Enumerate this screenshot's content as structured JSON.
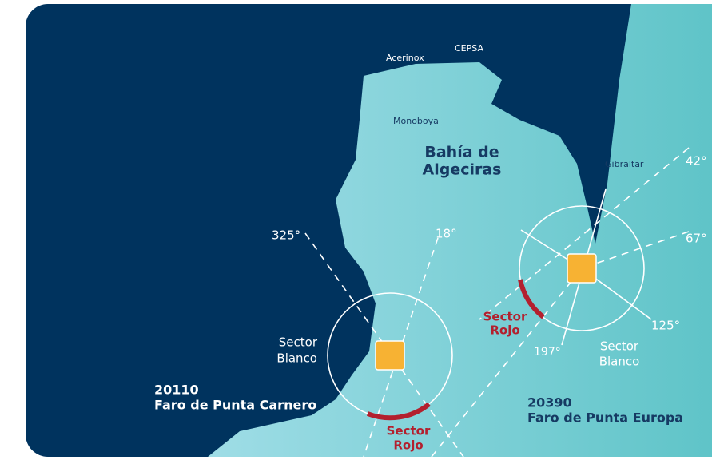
{
  "labels": {
    "acerinox": "Acerinox",
    "cepsa": "CEPSA",
    "monoboya": "Monoboya",
    "gibraltar": "Gibraltar"
  },
  "bay": [
    "Bahía de",
    "Algeciras"
  ],
  "carnero": {
    "number": "20110",
    "name": "Faro de Punta Carnero",
    "bearings": [
      "325°",
      "18°"
    ],
    "sector_white": [
      "Sector",
      "Blanco"
    ],
    "sector_red": [
      "Sector",
      "Rojo"
    ]
  },
  "europa": {
    "number": "20390",
    "name": "Faro de Punta Europa",
    "bearings": [
      "42°",
      "67°",
      "125°",
      "197°"
    ],
    "sector_white": [
      "Sector",
      "Blanco"
    ],
    "sector_red": [
      "Sector",
      "Rojo"
    ]
  }
}
